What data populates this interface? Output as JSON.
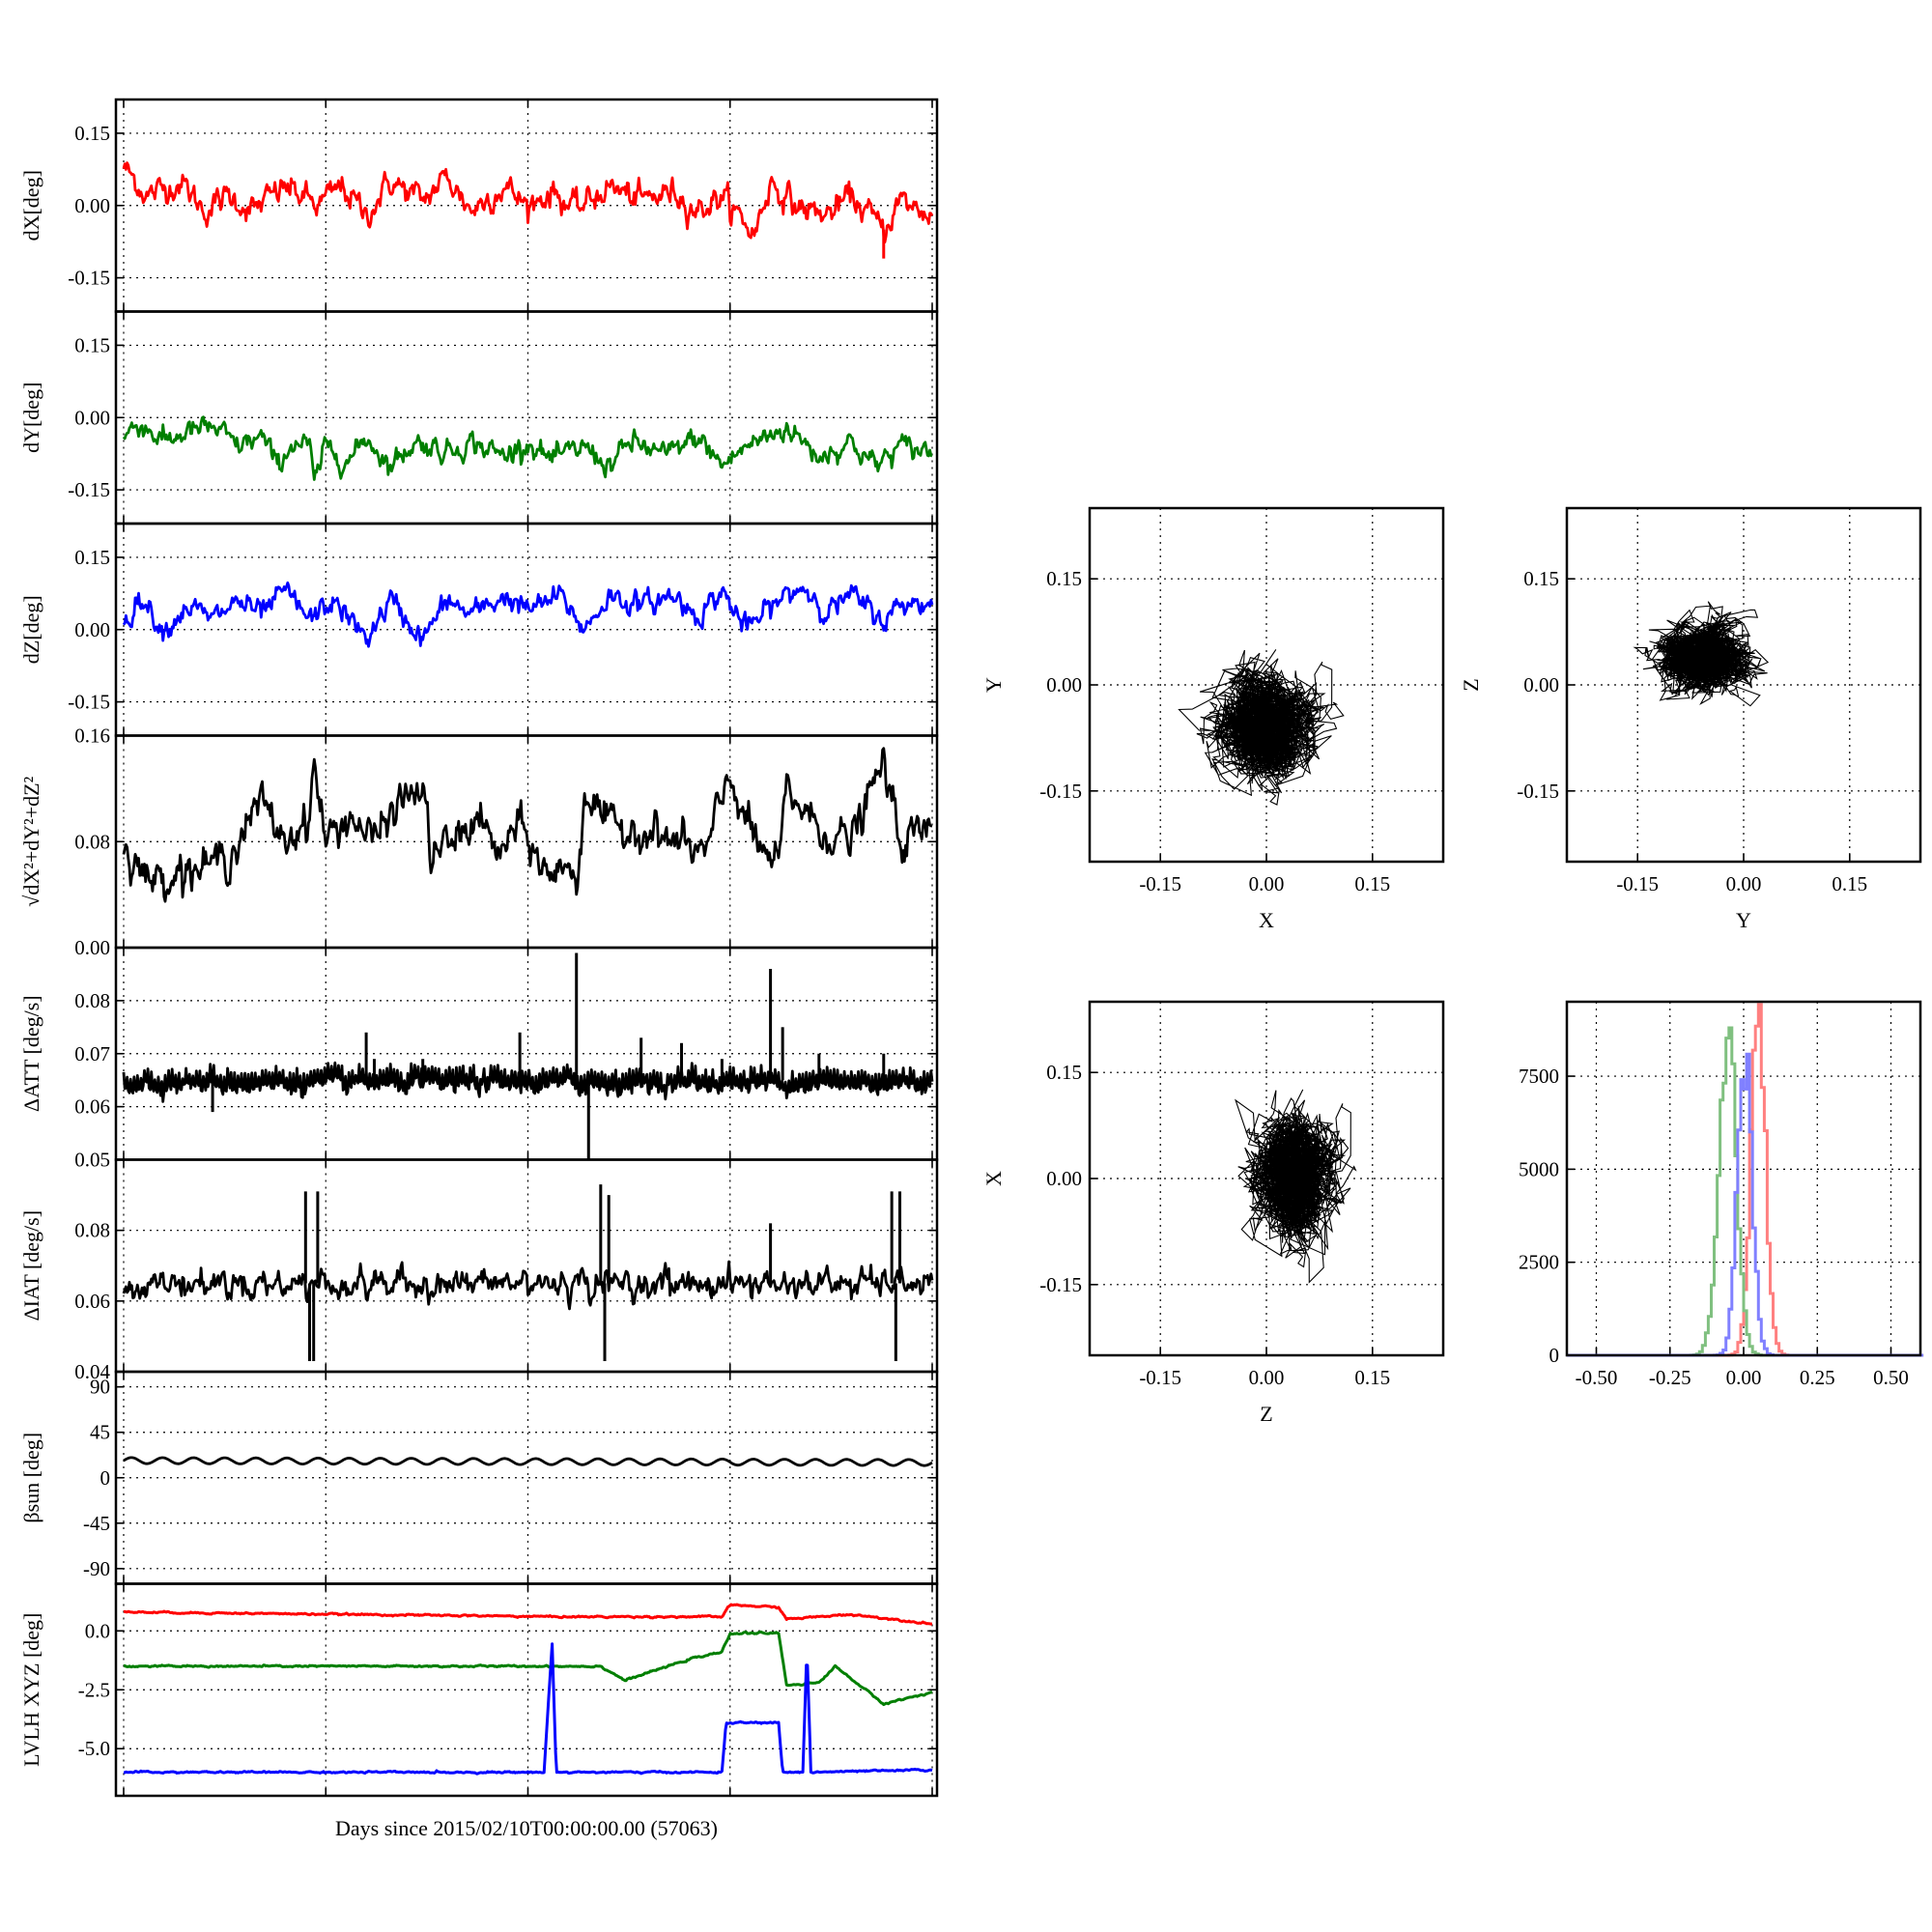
{
  "figure": {
    "xlabel": "Days since 2015/02/10T00:00:00.00 (57063)"
  },
  "chart_data": [
    {
      "id": "dx",
      "type": "line",
      "ylabel": "dX[deg]",
      "ylim": [
        -0.22,
        0.22
      ],
      "yticks": [
        "0.15",
        "0.00",
        "-0.15"
      ],
      "ytick_values": [
        0.15,
        0.0,
        -0.15
      ],
      "grid": true,
      "color": "#ff0000",
      "anchors": [
        [
          0,
          0.08
        ],
        [
          0.03,
          0.02
        ],
        [
          0.07,
          0.05
        ],
        [
          0.1,
          -0.01
        ],
        [
          0.13,
          0.02
        ],
        [
          0.16,
          -0.01
        ],
        [
          0.2,
          0.04
        ],
        [
          0.24,
          0.0
        ],
        [
          0.27,
          0.04
        ],
        [
          0.3,
          -0.02
        ],
        [
          0.33,
          0.05
        ],
        [
          0.37,
          0.01
        ],
        [
          0.4,
          0.06
        ],
        [
          0.43,
          -0.01
        ],
        [
          0.47,
          0.04
        ],
        [
          0.5,
          0.0
        ],
        [
          0.53,
          0.03
        ],
        [
          0.56,
          -0.01
        ],
        [
          0.6,
          0.04
        ],
        [
          0.64,
          0.01
        ],
        [
          0.68,
          0.03
        ],
        [
          0.71,
          -0.01
        ],
        [
          0.74,
          0.02
        ],
        [
          0.78,
          -0.06
        ],
        [
          0.8,
          0.05
        ],
        [
          0.83,
          0.0
        ],
        [
          0.87,
          -0.02
        ],
        [
          0.9,
          0.02
        ],
        [
          0.94,
          -0.05
        ],
        [
          0.96,
          0.01
        ],
        [
          1.0,
          -0.02
        ]
      ],
      "noise": 0.012,
      "spikes": [
        [
          0.94,
          -0.11
        ]
      ]
    },
    {
      "id": "dy",
      "type": "line",
      "ylabel": "dY[deg]",
      "ylim": [
        -0.22,
        0.22
      ],
      "yticks": [
        "0.15",
        "0.00",
        "-0.15"
      ],
      "ytick_values": [
        0.15,
        0.0,
        -0.15
      ],
      "grid": true,
      "color": "#007f00",
      "anchors": [
        [
          0,
          -0.04
        ],
        [
          0.02,
          -0.01
        ],
        [
          0.05,
          -0.05
        ],
        [
          0.08,
          -0.03
        ],
        [
          0.11,
          -0.02
        ],
        [
          0.14,
          -0.06
        ],
        [
          0.17,
          -0.04
        ],
        [
          0.19,
          -0.1
        ],
        [
          0.21,
          -0.05
        ],
        [
          0.23,
          -0.06
        ],
        [
          0.235,
          -0.14
        ],
        [
          0.25,
          -0.06
        ],
        [
          0.28,
          -0.09
        ],
        [
          0.3,
          -0.04
        ],
        [
          0.33,
          -0.1
        ],
        [
          0.36,
          -0.05
        ],
        [
          0.4,
          -0.07
        ],
        [
          0.43,
          -0.05
        ],
        [
          0.47,
          -0.08
        ],
        [
          0.5,
          -0.05
        ],
        [
          0.53,
          -0.09
        ],
        [
          0.57,
          -0.06
        ],
        [
          0.6,
          -0.1
        ],
        [
          0.63,
          -0.05
        ],
        [
          0.67,
          -0.08
        ],
        [
          0.71,
          -0.04
        ],
        [
          0.74,
          -0.1
        ],
        [
          0.77,
          -0.06
        ],
        [
          0.82,
          -0.02
        ],
        [
          0.86,
          -0.08
        ],
        [
          0.9,
          -0.05
        ],
        [
          0.93,
          -0.1
        ],
        [
          0.96,
          -0.06
        ],
        [
          1.0,
          -0.07
        ]
      ],
      "noise": 0.01,
      "spikes": []
    },
    {
      "id": "dz",
      "type": "line",
      "ylabel": "dZ[deg]",
      "ylim": [
        -0.22,
        0.22
      ],
      "yticks": [
        "0.15",
        "0.00",
        "-0.15"
      ],
      "ytick_values": [
        0.15,
        0.0,
        -0.15
      ],
      "grid": true,
      "color": "#0000ff",
      "anchors": [
        [
          0,
          0.01
        ],
        [
          0.02,
          0.07
        ],
        [
          0.05,
          0.0
        ],
        [
          0.08,
          0.05
        ],
        [
          0.11,
          0.02
        ],
        [
          0.14,
          0.06
        ],
        [
          0.17,
          0.03
        ],
        [
          0.2,
          0.08
        ],
        [
          0.23,
          0.02
        ],
        [
          0.26,
          0.06
        ],
        [
          0.3,
          -0.02
        ],
        [
          0.33,
          0.06
        ],
        [
          0.37,
          -0.02
        ],
        [
          0.4,
          0.06
        ],
        [
          0.43,
          0.03
        ],
        [
          0.47,
          0.07
        ],
        [
          0.5,
          0.04
        ],
        [
          0.54,
          0.07
        ],
        [
          0.57,
          0.0
        ],
        [
          0.6,
          0.07
        ],
        [
          0.64,
          0.05
        ],
        [
          0.68,
          0.07
        ],
        [
          0.71,
          0.03
        ],
        [
          0.74,
          0.08
        ],
        [
          0.77,
          0.0
        ],
        [
          0.81,
          0.06
        ],
        [
          0.84,
          0.09
        ],
        [
          0.87,
          0.04
        ],
        [
          0.9,
          0.07
        ],
        [
          0.94,
          0.02
        ],
        [
          0.97,
          0.06
        ],
        [
          1.0,
          0.05
        ]
      ],
      "noise": 0.01,
      "spikes": []
    },
    {
      "id": "dr",
      "type": "line",
      "ylabel": "√dX²+dY²+dZ²",
      "ylim": [
        0.0,
        0.16
      ],
      "yticks": [
        "0.16",
        "0.08",
        "0.00"
      ],
      "ytick_values": [
        0.16,
        0.08,
        0.0
      ],
      "grid": true,
      "color": "#000000",
      "anchors": [
        [
          0,
          0.08
        ],
        [
          0.03,
          0.05
        ],
        [
          0.07,
          0.06
        ],
        [
          0.1,
          0.06
        ],
        [
          0.13,
          0.07
        ],
        [
          0.17,
          0.11
        ],
        [
          0.2,
          0.08
        ],
        [
          0.23,
          0.1
        ],
        [
          0.235,
          0.14
        ],
        [
          0.25,
          0.08
        ],
        [
          0.28,
          0.1
        ],
        [
          0.31,
          0.08
        ],
        [
          0.34,
          0.11
        ],
        [
          0.37,
          0.12
        ],
        [
          0.38,
          0.07
        ],
        [
          0.41,
          0.08
        ],
        [
          0.44,
          0.1
        ],
        [
          0.46,
          0.07
        ],
        [
          0.49,
          0.09
        ],
        [
          0.53,
          0.05
        ],
        [
          0.55,
          0.07
        ],
        [
          0.56,
          0.04
        ],
        [
          0.57,
          0.12
        ],
        [
          0.6,
          0.09
        ],
        [
          0.64,
          0.09
        ],
        [
          0.68,
          0.08
        ],
        [
          0.72,
          0.07
        ],
        [
          0.75,
          0.13
        ],
        [
          0.78,
          0.08
        ],
        [
          0.81,
          0.06
        ],
        [
          0.82,
          0.12
        ],
        [
          0.86,
          0.09
        ],
        [
          0.9,
          0.08
        ],
        [
          0.94,
          0.14
        ],
        [
          0.96,
          0.08
        ],
        [
          1.0,
          0.09
        ]
      ],
      "noise": 0.006,
      "spikes": []
    },
    {
      "id": "datt",
      "type": "line",
      "ylabel": "ΔATT [deg/s]",
      "ylim": [
        0.05,
        0.09
      ],
      "yticks": [
        "0.08",
        "0.07",
        "0.06",
        "0.05"
      ],
      "ytick_values": [
        0.08,
        0.07,
        0.06,
        0.05
      ],
      "grid": true,
      "color": "#000000",
      "anchors": [
        [
          0,
          0.065
        ],
        [
          1.0,
          0.065
        ]
      ],
      "noise": 0.0012,
      "spikes": [
        [
          0.11,
          0.059
        ],
        [
          0.3,
          0.074
        ],
        [
          0.31,
          0.069
        ],
        [
          0.37,
          0.069
        ],
        [
          0.49,
          0.074
        ],
        [
          0.56,
          0.089
        ],
        [
          0.575,
          0.05
        ],
        [
          0.64,
          0.073
        ],
        [
          0.69,
          0.072
        ],
        [
          0.74,
          0.069
        ],
        [
          0.8,
          0.086
        ],
        [
          0.815,
          0.075
        ],
        [
          0.86,
          0.07
        ],
        [
          0.94,
          0.07
        ]
      ]
    },
    {
      "id": "diat",
      "type": "line",
      "ylabel": "ΔIAT [deg/s]",
      "ylim": [
        0.04,
        0.1
      ],
      "yticks": [
        "0.08",
        "0.06",
        "0.04"
      ],
      "ytick_values": [
        0.08,
        0.06,
        0.04
      ],
      "grid": true,
      "color": "#000000",
      "anchors": [
        [
          0,
          0.065
        ],
        [
          1.0,
          0.065
        ]
      ],
      "noise": 0.0015,
      "spikes": [
        [
          0.225,
          0.091
        ],
        [
          0.235,
          0.043
        ],
        [
          0.24,
          0.091
        ],
        [
          0.23,
          0.043
        ],
        [
          0.59,
          0.093
        ],
        [
          0.595,
          0.043
        ],
        [
          0.6,
          0.09
        ],
        [
          0.8,
          0.082
        ],
        [
          0.95,
          0.091
        ],
        [
          0.955,
          0.043
        ],
        [
          0.96,
          0.091
        ]
      ]
    },
    {
      "id": "beta",
      "type": "line",
      "ylabel": "βsun [deg]",
      "ylim": [
        -105,
        105
      ],
      "yticks": [
        "90",
        "45",
        "0",
        "-45",
        "-90"
      ],
      "ytick_values": [
        90,
        45,
        0,
        -45,
        -90
      ],
      "grid": true,
      "color": "#000000",
      "anchors": [
        [
          0,
          17
        ],
        [
          1.0,
          15
        ]
      ],
      "noise": 0.0,
      "spikes": []
    },
    {
      "id": "lvlh",
      "type": "line",
      "ylabel": "LVLH XYZ [deg]",
      "ylim": [
        -7.0,
        2.0
      ],
      "yticks": [
        "0.0",
        "-2.5",
        "-5.0"
      ],
      "ytick_values": [
        0.0,
        -2.5,
        -5.0
      ],
      "grid": true,
      "series": [
        {
          "color": "#ff0000",
          "values": [
            [
              0,
              0.8
            ],
            [
              0.55,
              0.6
            ],
            [
              0.74,
              0.6
            ],
            [
              0.75,
              1.1
            ],
            [
              0.81,
              1.0
            ],
            [
              0.82,
              0.5
            ],
            [
              0.9,
              0.7
            ],
            [
              1.0,
              0.3
            ]
          ]
        },
        {
          "color": "#007f00",
          "values": [
            [
              0,
              -1.5
            ],
            [
              0.59,
              -1.5
            ],
            [
              0.62,
              -2.1
            ],
            [
              0.7,
              -1.2
            ],
            [
              0.74,
              -0.9
            ],
            [
              0.75,
              -0.1
            ],
            [
              0.81,
              -0.1
            ],
            [
              0.82,
              -2.3
            ],
            [
              0.86,
              -2.2
            ],
            [
              0.88,
              -1.5
            ],
            [
              0.94,
              -3.1
            ],
            [
              1.0,
              -2.6
            ]
          ]
        },
        {
          "color": "#0000ff",
          "values": [
            [
              0,
              -6.0
            ],
            [
              0.52,
              -6.0
            ],
            [
              0.53,
              -0.5
            ],
            [
              0.535,
              -6.0
            ],
            [
              0.74,
              -6.0
            ],
            [
              0.745,
              -3.9
            ],
            [
              0.81,
              -3.9
            ],
            [
              0.815,
              -6.0
            ],
            [
              0.84,
              -6.0
            ],
            [
              0.845,
              -0.7
            ],
            [
              0.85,
              -6.0
            ],
            [
              1.0,
              -5.9
            ]
          ]
        }
      ]
    },
    {
      "id": "scatter_xy",
      "type": "scatter",
      "xlabel": "X",
      "ylabel": "Y",
      "xlim": [
        -0.25,
        0.25
      ],
      "ylim": [
        -0.25,
        0.25
      ],
      "xticks": [
        "-0.15",
        "0.00",
        "0.15"
      ],
      "yticks": [
        "0.15",
        "0.00",
        "-0.15"
      ],
      "center": [
        0.0,
        -0.06
      ],
      "spread": [
        0.035,
        0.035
      ],
      "color": "#000000"
    },
    {
      "id": "scatter_yz",
      "type": "scatter",
      "xlabel": "Y",
      "ylabel": "Z",
      "xlim": [
        -0.25,
        0.25
      ],
      "ylim": [
        -0.25,
        0.25
      ],
      "xticks": [
        "-0.15",
        "0.00",
        "0.15"
      ],
      "yticks": [
        "0.15",
        "0.00",
        "-0.15"
      ],
      "center": [
        -0.06,
        0.04
      ],
      "spread": [
        0.03,
        0.025
      ],
      "color": "#000000"
    },
    {
      "id": "scatter_zx",
      "type": "scatter",
      "xlabel": "Z",
      "ylabel": "X",
      "xlim": [
        -0.25,
        0.25
      ],
      "ylim": [
        -0.25,
        0.25
      ],
      "xticks": [
        "-0.15",
        "0.00",
        "0.15"
      ],
      "yticks": [
        "0.15",
        "0.00",
        "-0.15"
      ],
      "center": [
        0.04,
        0.0
      ],
      "spread": [
        0.03,
        0.04
      ],
      "color": "#000000"
    },
    {
      "id": "histogram",
      "type": "histogram",
      "xlim": [
        -0.6,
        0.6
      ],
      "ylim": [
        0,
        9500
      ],
      "xticks": [
        "-0.50",
        "-0.25",
        "0.00",
        "0.25",
        "0.50"
      ],
      "xtick_values": [
        -0.5,
        -0.25,
        0.0,
        0.25,
        0.5
      ],
      "yticks": [
        "7500",
        "5000",
        "2500",
        "0"
      ],
      "ytick_values": [
        7500,
        5000,
        2500,
        0
      ],
      "series": [
        {
          "color": "#ff8080",
          "mean": 0.045,
          "sd": 0.025,
          "peak": 9000
        },
        {
          "color": "#80c080",
          "mean": -0.06,
          "sd": 0.03,
          "peak": 8700
        },
        {
          "color": "#8080ff",
          "mean": 0.0,
          "sd": 0.025,
          "peak": 8000
        }
      ]
    }
  ]
}
